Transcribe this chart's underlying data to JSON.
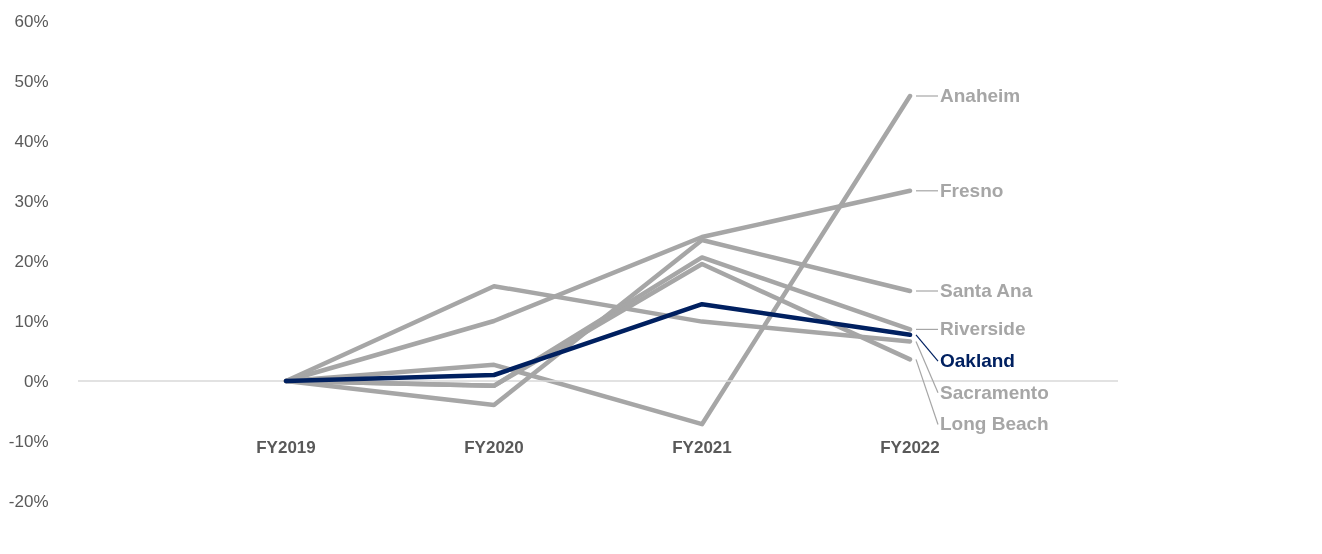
{
  "chart_data": {
    "type": "line",
    "categories": [
      "FY2019",
      "FY2020",
      "FY2021",
      "FY2022"
    ],
    "ylim": [
      -20,
      60
    ],
    "yticks": [
      {
        "value": -20,
        "label": "-20%"
      },
      {
        "value": -10,
        "label": "-10%"
      },
      {
        "value": 0,
        "label": "0%"
      },
      {
        "value": 10,
        "label": "10%"
      },
      {
        "value": 20,
        "label": "20%"
      },
      {
        "value": 30,
        "label": "30%"
      },
      {
        "value": 40,
        "label": "40%"
      },
      {
        "value": 50,
        "label": "50%"
      },
      {
        "value": 60,
        "label": "60%"
      }
    ],
    "grid": false,
    "legend": "right",
    "ref_lines": [
      {
        "axis": "y",
        "value": 0,
        "color": "#d9d9d9"
      }
    ],
    "series": [
      {
        "name": "Anaheim",
        "color": "#a6a6a6",
        "values": [
          0,
          2.7,
          -7.2,
          47.5
        ]
      },
      {
        "name": "Fresno",
        "color": "#a6a6a6",
        "values": [
          0,
          10,
          24,
          31.7
        ]
      },
      {
        "name": "Santa Ana",
        "color": "#a6a6a6",
        "values": [
          0,
          -4,
          23.5,
          15
        ]
      },
      {
        "name": "Riverside",
        "color": "#a6a6a6",
        "values": [
          0,
          -0.8,
          20.6,
          8.6
        ]
      },
      {
        "name": "Sacramento",
        "color": "#a6a6a6",
        "values": [
          0,
          15.8,
          9.9,
          6.6
        ]
      },
      {
        "name": "Long Beach",
        "color": "#a6a6a6",
        "values": [
          0,
          -0.8,
          19.5,
          3.6
        ]
      },
      {
        "name": "Oakland",
        "color": "#002060",
        "values": [
          0,
          1,
          12.8,
          7.7
        ]
      }
    ]
  }
}
